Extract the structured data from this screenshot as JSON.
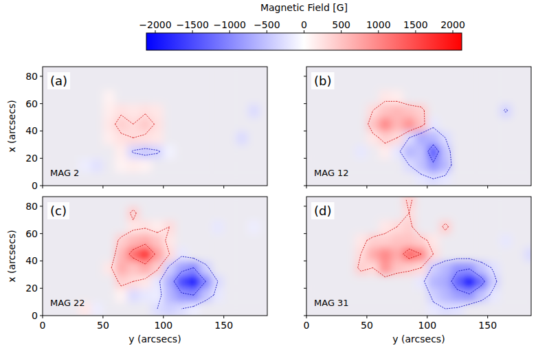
{
  "chart_data": {
    "type": "heatmap",
    "colorbar": {
      "label": "Magnetic Field [G]",
      "range": [
        -2120,
        2120
      ],
      "ticks": [
        {
          "value": -2000,
          "label": "−2000"
        },
        {
          "value": -1500,
          "label": "−1500"
        },
        {
          "value": -1000,
          "label": "−1000"
        },
        {
          "value": -500,
          "label": "−500"
        },
        0,
        500,
        1000,
        1500,
        2000
      ]
    },
    "xlabel": "y (arcsecs)",
    "ylabel": "x (arcsecs)",
    "xlim": [
      0,
      186
    ],
    "ylim": [
      0,
      87
    ],
    "xticks": [
      0,
      50,
      100,
      150
    ],
    "yticks": [
      0,
      20,
      40,
      60,
      80
    ],
    "xbins": [
      0,
      10,
      20,
      30,
      40,
      50,
      60,
      70,
      80,
      90,
      100,
      110,
      120,
      130,
      140,
      150,
      160,
      170,
      180,
      190
    ],
    "ybins": [
      0,
      10,
      20,
      30,
      40,
      50,
      60,
      70,
      80,
      90
    ],
    "contour_levels": [
      -1000,
      -300,
      300,
      1000
    ],
    "panels": [
      {
        "label": "(a)",
        "title": "MAG 2",
        "tick_labels": "y",
        "cells": [
          [
            0,
            0,
            0,
            0,
            0,
            0,
            0,
            0,
            0,
            0,
            0,
            0,
            0,
            0,
            0,
            0,
            0,
            0,
            0
          ],
          [
            0,
            0,
            0,
            -150,
            -250,
            0,
            100,
            150,
            100,
            0,
            0,
            0,
            0,
            0,
            0,
            0,
            0,
            0,
            0
          ],
          [
            0,
            0,
            0,
            0,
            0,
            0,
            150,
            -350,
            -450,
            -350,
            -100,
            0,
            0,
            0,
            0,
            0,
            0,
            0,
            0
          ],
          [
            0,
            0,
            0,
            0,
            0,
            150,
            250,
            300,
            250,
            200,
            0,
            0,
            0,
            0,
            0,
            0,
            -300,
            0,
            0
          ],
          [
            0,
            0,
            0,
            0,
            0,
            200,
            400,
            300,
            450,
            250,
            0,
            0,
            0,
            0,
            0,
            0,
            0,
            0,
            0
          ],
          [
            0,
            0,
            0,
            0,
            0,
            150,
            250,
            200,
            250,
            200,
            0,
            0,
            0,
            0,
            0,
            0,
            0,
            -300,
            0
          ],
          [
            0,
            0,
            0,
            0,
            0,
            100,
            0,
            0,
            0,
            0,
            0,
            0,
            0,
            0,
            0,
            0,
            0,
            0,
            0
          ],
          [
            0,
            0,
            0,
            0,
            0,
            0,
            0,
            0,
            0,
            0,
            0,
            0,
            0,
            0,
            0,
            0,
            0,
            0,
            0
          ],
          [
            0,
            0,
            0,
            0,
            0,
            0,
            0,
            0,
            0,
            0,
            0,
            0,
            0,
            0,
            0,
            0,
            0,
            0,
            0
          ]
        ]
      },
      {
        "label": "(b)",
        "title": "MAG 12",
        "tick_labels": false,
        "cells": [
          [
            0,
            0,
            0,
            0,
            0,
            0,
            0,
            0,
            0,
            -200,
            -300,
            -200,
            0,
            0,
            0,
            0,
            0,
            0,
            0
          ],
          [
            0,
            0,
            0,
            0,
            0,
            0,
            0,
            0,
            -300,
            -500,
            -900,
            -600,
            0,
            0,
            0,
            0,
            0,
            0,
            0
          ],
          [
            0,
            0,
            0,
            0,
            -200,
            0,
            150,
            -200,
            -600,
            -500,
            -1400,
            -500,
            0,
            0,
            0,
            0,
            0,
            0,
            0
          ],
          [
            0,
            0,
            0,
            0,
            0,
            200,
            400,
            300,
            -300,
            -700,
            -600,
            -300,
            0,
            0,
            0,
            0,
            0,
            0,
            0
          ],
          [
            0,
            0,
            0,
            0,
            0,
            500,
            1000,
            600,
            900,
            500,
            -200,
            0,
            0,
            0,
            0,
            0,
            0,
            0,
            0
          ],
          [
            0,
            0,
            0,
            0,
            0,
            300,
            500,
            600,
            500,
            400,
            0,
            0,
            0,
            0,
            0,
            0,
            -350,
            0,
            0
          ],
          [
            0,
            0,
            0,
            0,
            0,
            0,
            200,
            150,
            0,
            0,
            0,
            0,
            0,
            0,
            0,
            0,
            0,
            0,
            0
          ],
          [
            0,
            0,
            0,
            0,
            0,
            0,
            0,
            0,
            0,
            0,
            0,
            0,
            0,
            0,
            0,
            0,
            0,
            0,
            0
          ],
          [
            0,
            0,
            0,
            0,
            0,
            0,
            0,
            0,
            0,
            0,
            0,
            0,
            0,
            0,
            0,
            0,
            0,
            0,
            0
          ]
        ]
      },
      {
        "label": "(c)",
        "title": "MAG 22",
        "tick_labels": true,
        "cells": [
          [
            0,
            0,
            0,
            200,
            -150,
            0,
            0,
            0,
            0,
            -300,
            -400,
            -300,
            -150,
            0,
            0,
            0,
            0,
            0,
            0
          ],
          [
            0,
            0,
            0,
            0,
            0,
            0,
            100,
            -300,
            -200,
            -150,
            -600,
            -900,
            -1000,
            -500,
            -200,
            0,
            0,
            0,
            0
          ],
          [
            0,
            0,
            0,
            0,
            0,
            0,
            400,
            300,
            200,
            -200,
            -700,
            -1500,
            -2000,
            -1000,
            -300,
            0,
            0,
            0,
            0
          ],
          [
            0,
            0,
            0,
            0,
            0,
            200,
            700,
            500,
            700,
            400,
            -400,
            -800,
            -1000,
            -400,
            0,
            0,
            0,
            0,
            0
          ],
          [
            0,
            0,
            0,
            0,
            0,
            0,
            600,
            1200,
            1800,
            800,
            300,
            -200,
            0,
            0,
            0,
            0,
            0,
            0,
            0
          ],
          [
            0,
            0,
            0,
            0,
            0,
            0,
            400,
            600,
            700,
            500,
            200,
            0,
            0,
            0,
            0,
            0,
            0,
            0,
            0
          ],
          [
            0,
            0,
            0,
            0,
            0,
            0,
            0,
            200,
            250,
            150,
            300,
            0,
            0,
            0,
            -200,
            0,
            0,
            -150,
            0
          ],
          [
            0,
            0,
            0,
            0,
            0,
            0,
            0,
            400,
            0,
            0,
            0,
            0,
            0,
            0,
            0,
            0,
            0,
            0,
            0
          ],
          [
            0,
            0,
            0,
            0,
            0,
            0,
            0,
            0,
            0,
            0,
            0,
            0,
            0,
            0,
            0,
            0,
            0,
            0,
            0
          ]
        ]
      },
      {
        "label": "(d)",
        "title": "MAG 31",
        "tick_labels": "x",
        "cells": [
          [
            0,
            0,
            0,
            0,
            0,
            0,
            0,
            0,
            0,
            0,
            -200,
            -300,
            -250,
            0,
            0,
            0,
            0,
            0,
            0
          ],
          [
            0,
            0,
            0,
            0,
            0,
            0,
            0,
            0,
            0,
            0,
            -400,
            -600,
            -800,
            -900,
            -500,
            -200,
            0,
            0,
            0
          ],
          [
            0,
            0,
            0,
            0,
            0,
            0,
            0,
            0,
            0,
            -200,
            -600,
            -700,
            -1300,
            -2100,
            -1200,
            -400,
            0,
            0,
            0
          ],
          [
            0,
            0,
            0,
            0,
            400,
            300,
            900,
            500,
            400,
            300,
            -400,
            -600,
            -900,
            -900,
            -500,
            -250,
            0,
            0,
            0
          ],
          [
            0,
            0,
            0,
            0,
            300,
            700,
            1000,
            700,
            1300,
            1000,
            300,
            0,
            0,
            0,
            0,
            0,
            0,
            0,
            -300
          ],
          [
            0,
            0,
            0,
            0,
            200,
            400,
            400,
            500,
            500,
            400,
            200,
            0,
            0,
            0,
            0,
            0,
            -200,
            0,
            0
          ],
          [
            0,
            0,
            0,
            0,
            0,
            0,
            200,
            300,
            400,
            0,
            0,
            400,
            0,
            0,
            0,
            0,
            0,
            0,
            0
          ],
          [
            0,
            0,
            0,
            0,
            0,
            0,
            0,
            0,
            300,
            0,
            0,
            0,
            0,
            0,
            0,
            0,
            0,
            0,
            0
          ],
          [
            0,
            0,
            0,
            0,
            0,
            0,
            0,
            0,
            400,
            0,
            0,
            0,
            0,
            0,
            0,
            0,
            0,
            0,
            0
          ]
        ]
      }
    ]
  }
}
